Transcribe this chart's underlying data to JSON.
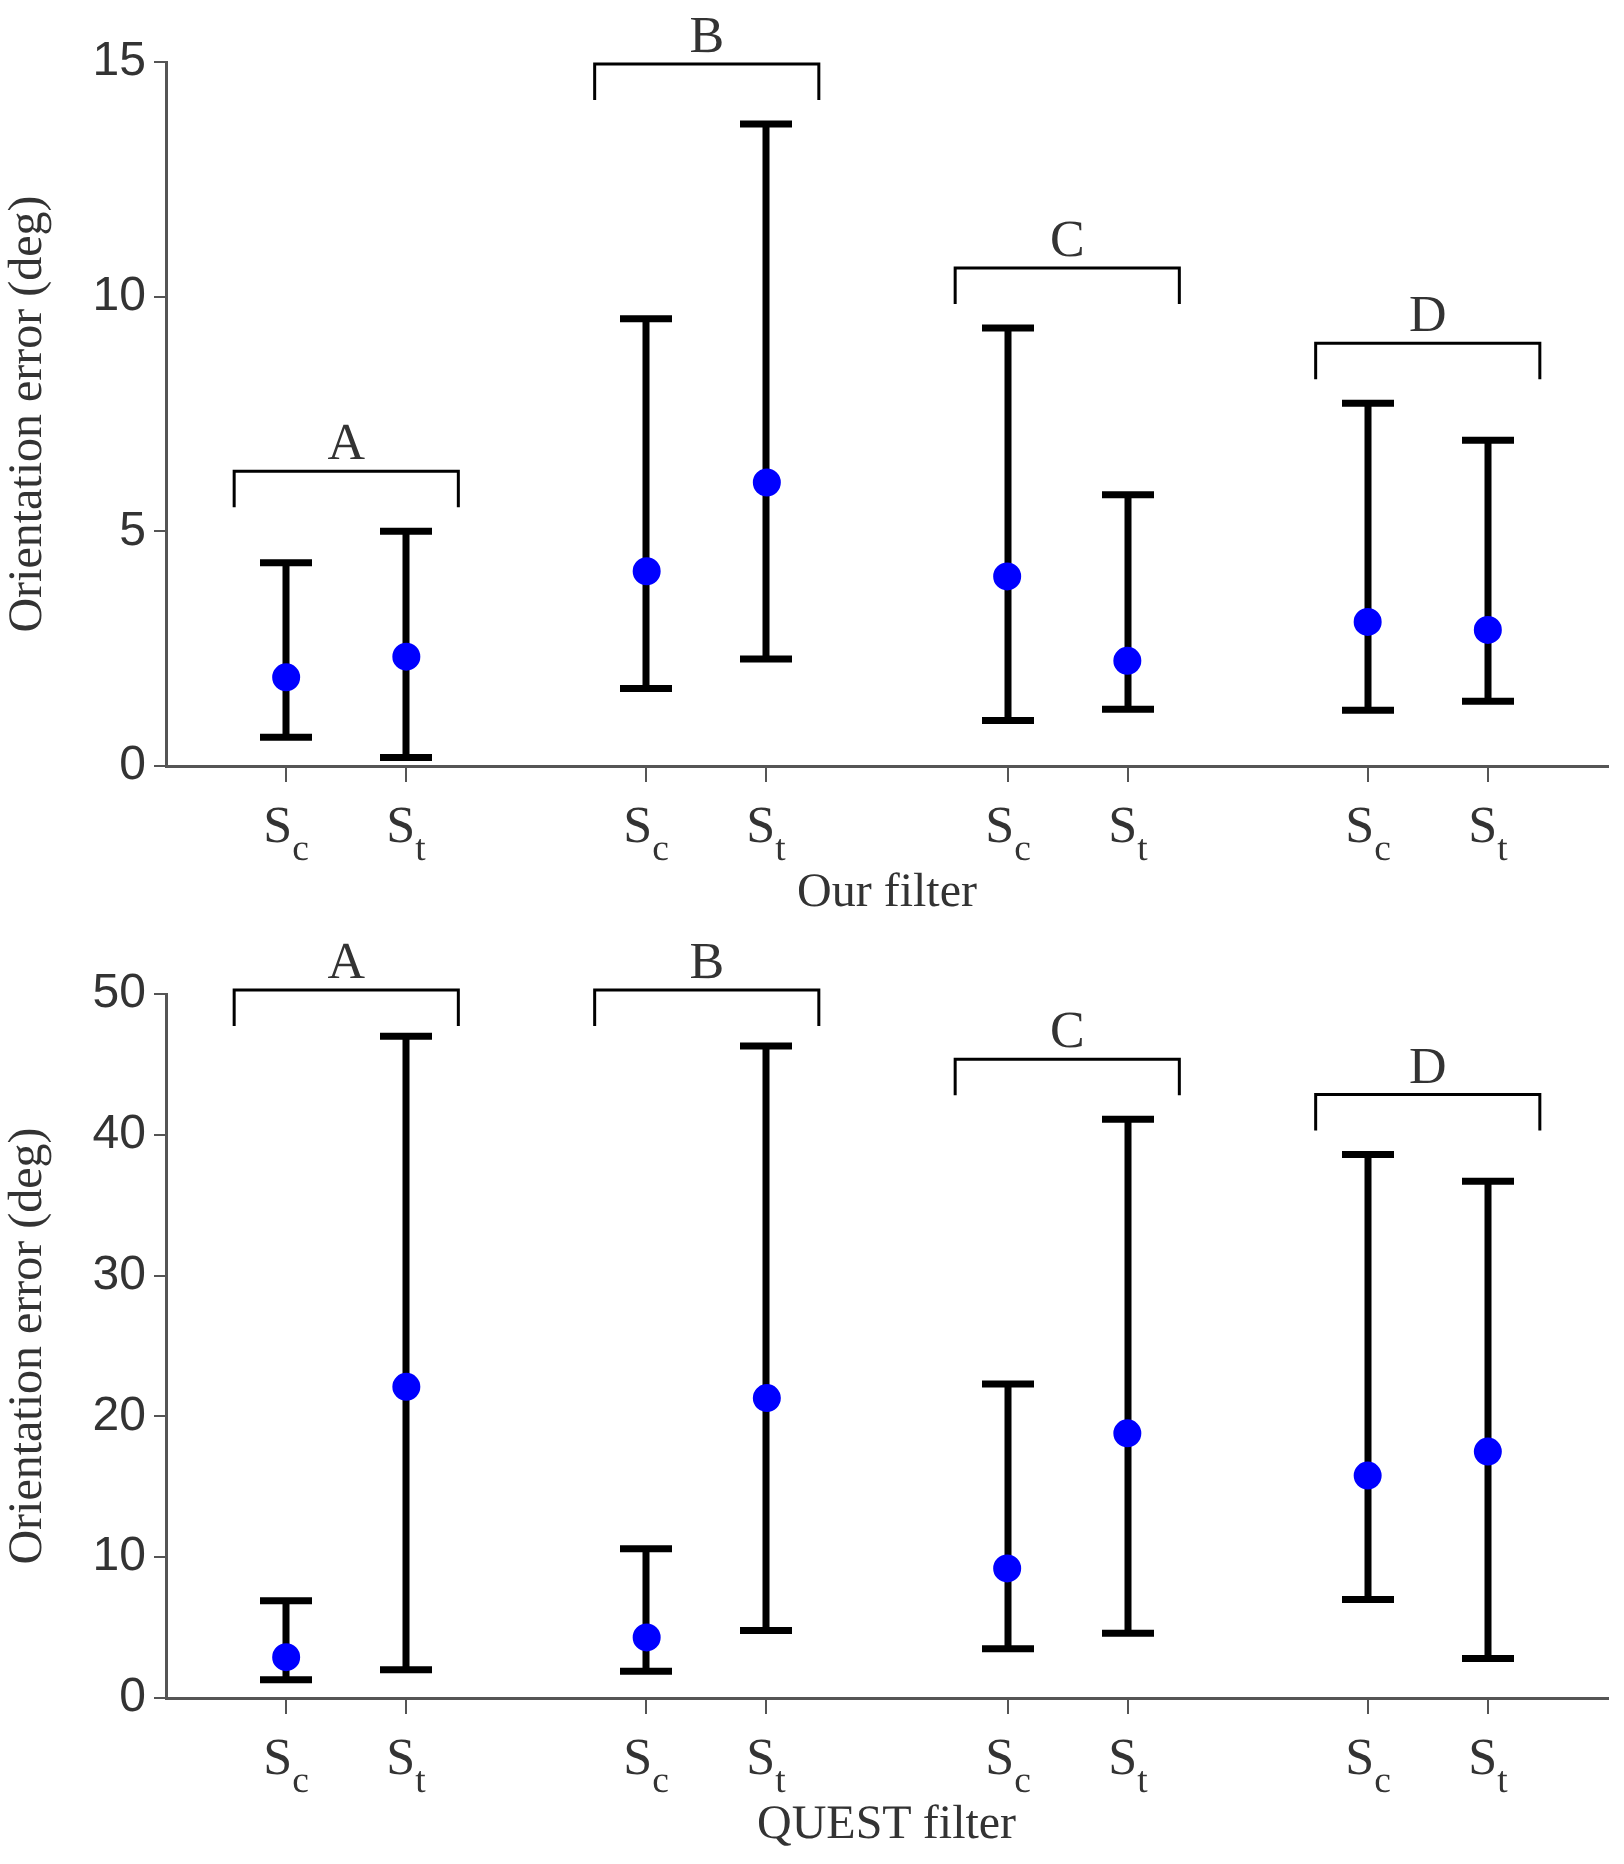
{
  "chart_data": [
    {
      "type": "scatter",
      "xlabel": "Our filter",
      "ylabel": "Orientation error (deg)",
      "color": "#0000ff",
      "marker": "circle",
      "categories": [
        null,
        "S$_{c}$",
        "S$_{t}$",
        null,
        "S$_{c}$",
        "S$_{t}$",
        null,
        "S$_{c}$",
        "S$_{t}$",
        null,
        "S$_{c}$",
        "S$_{t}$",
        null
      ],
      "values": [
        null,
        1.89,
        2.33,
        null,
        4.15,
        6.04,
        null,
        4.04,
        2.24,
        null,
        3.07,
        2.9,
        null
      ],
      "errors": [
        null,
        [
          0.61,
          4.33
        ],
        [
          0.18,
          5.0
        ],
        null,
        [
          1.65,
          9.53
        ],
        [
          2.28,
          13.68
        ],
        null,
        [
          0.97,
          9.33
        ],
        [
          1.21,
          5.78
        ],
        null,
        [
          1.19,
          7.73
        ],
        [
          1.38,
          6.94
        ],
        null
      ],
      "ylim": [
        0,
        15
      ],
      "yticks": [
        0,
        5,
        10,
        15
      ],
      "annotations": [
        "A",
        "B",
        "C",
        "D"
      ]
    },
    {
      "type": "scatter",
      "xlabel": "QUEST filter",
      "ylabel": "Orientation error (deg)",
      "color": "#0000ff",
      "marker": "circle",
      "categories": [
        null,
        "S$_{c}$",
        "S$_{t}$",
        null,
        "S$_{c}$",
        "S$_{t}$",
        null,
        "S$_{c}$",
        "S$_{t}$",
        null,
        "S$_{c}$",
        "S$_{t}$",
        null
      ],
      "values": [
        null,
        2.9,
        22.1,
        null,
        4.3,
        21.3,
        null,
        9.2,
        18.8,
        null,
        15.8,
        17.5,
        null
      ],
      "errors": [
        null,
        [
          1.3,
          6.9
        ],
        [
          2.0,
          47.0
        ],
        null,
        [
          1.9,
          10.6
        ],
        [
          4.8,
          46.3
        ],
        null,
        [
          3.5,
          22.3
        ],
        [
          4.6,
          41.1
        ],
        null,
        [
          7.0,
          38.6
        ],
        [
          2.8,
          36.7
        ],
        null
      ],
      "ylim": [
        0,
        50
      ],
      "yticks": [
        0,
        10,
        20,
        30,
        40,
        50
      ],
      "annotations": [
        "A",
        "B",
        "C",
        "D"
      ]
    }
  ]
}
